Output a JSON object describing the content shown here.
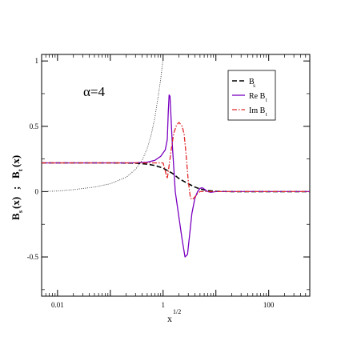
{
  "chart_data": {
    "type": "line",
    "annotation": "α=4",
    "xlabel": "x",
    "xlabel_sup": "1/2",
    "ylabel": "B",
    "ylabel_parts": {
      "s_sub": "s",
      "t_sub": "t",
      "arg": "(x)",
      "separator": ";"
    },
    "x_scale": "log",
    "xlim": [
      0.005,
      600
    ],
    "ylim": [
      -0.8,
      1.05
    ],
    "x_ticks": [
      {
        "value": 0.01,
        "label": "0.01"
      },
      {
        "value": 1,
        "label": "1"
      },
      {
        "value": 100,
        "label": "100"
      }
    ],
    "y_ticks": [
      {
        "value": 1,
        "label": "1"
      },
      {
        "value": 0.5,
        "label": "0.5"
      },
      {
        "value": 0,
        "label": "0"
      },
      {
        "value": -0.5,
        "label": "-0.5"
      }
    ],
    "legend_position": "top-right",
    "legend": [
      {
        "series": "Bs",
        "label": "B",
        "sub": "s"
      },
      {
        "series": "ReBt",
        "label": "Re B",
        "sub": "t"
      },
      {
        "series": "ImBt",
        "label": "Im B",
        "sub": "t"
      }
    ],
    "series": [
      {
        "key": "Bs",
        "color": "#000000",
        "dash": "6,3",
        "width": 1.6,
        "x": [
          0.005,
          0.01,
          0.05,
          0.1,
          0.2,
          0.3,
          0.5,
          0.7,
          1.0,
          1.5,
          2.0,
          3.0,
          4.0,
          5.0,
          7.0,
          10,
          20,
          50,
          100,
          600
        ],
        "y": [
          0.22,
          0.22,
          0.22,
          0.22,
          0.219,
          0.218,
          0.21,
          0.2,
          0.18,
          0.14,
          0.1,
          0.06,
          0.035,
          0.02,
          0.008,
          0.003,
          0.0,
          0.0,
          0.0,
          0.0
        ]
      },
      {
        "key": "ReBt",
        "color": "#7b00c0",
        "dash": "",
        "width": 1.3,
        "x": [
          0.005,
          0.01,
          0.05,
          0.1,
          0.2,
          0.3,
          0.5,
          0.7,
          0.9,
          1.1,
          1.2,
          1.25,
          1.3,
          1.35,
          1.4,
          1.5,
          1.7,
          2.0,
          2.3,
          2.6,
          2.9,
          3.2,
          3.5,
          4.0,
          4.5,
          5.0,
          5.5,
          6.0,
          7.0,
          8.0,
          10,
          20,
          100,
          600
        ],
        "y": [
          0.22,
          0.22,
          0.22,
          0.22,
          0.22,
          0.221,
          0.225,
          0.24,
          0.27,
          0.32,
          0.4,
          0.6,
          0.74,
          0.73,
          0.6,
          0.35,
          0.0,
          -0.2,
          -0.37,
          -0.5,
          -0.48,
          -0.32,
          -0.17,
          -0.05,
          0.0,
          0.025,
          0.03,
          0.02,
          0.0,
          -0.005,
          0.0,
          0.0,
          0.0,
          0.0
        ]
      },
      {
        "key": "ImBt",
        "color": "#e3292b",
        "dash": "6,2,1.5,2",
        "width": 1.3,
        "x": [
          0.005,
          0.01,
          0.05,
          0.1,
          0.2,
          0.3,
          0.5,
          0.7,
          1.0,
          1.2,
          1.3,
          1.4,
          1.5,
          1.6,
          1.8,
          2.0,
          2.3,
          2.5,
          2.7,
          3.0,
          3.3,
          3.6,
          4.0,
          4.5,
          5.0,
          6.0,
          8.0,
          10,
          20,
          100,
          600
        ],
        "y": [
          0.22,
          0.22,
          0.22,
          0.22,
          0.22,
          0.22,
          0.22,
          0.22,
          0.22,
          0.1,
          0.2,
          0.3,
          0.38,
          0.45,
          0.51,
          0.53,
          0.5,
          0.44,
          0.3,
          0.08,
          -0.05,
          -0.06,
          -0.04,
          -0.015,
          0.0,
          0.0,
          0.0,
          0.0,
          0.0,
          0.0,
          0.0
        ]
      },
      {
        "key": "dotted",
        "color": "#333333",
        "dash": "1,1.6",
        "width": 0.9,
        "x": [
          0.005,
          0.01,
          0.02,
          0.05,
          0.1,
          0.2,
          0.3,
          0.4,
          0.5,
          0.6,
          0.7,
          0.8,
          0.9,
          1.0
        ],
        "y": [
          0.0,
          0.005,
          0.015,
          0.035,
          0.06,
          0.11,
          0.17,
          0.24,
          0.33,
          0.44,
          0.57,
          0.72,
          0.86,
          1.02
        ]
      }
    ]
  }
}
